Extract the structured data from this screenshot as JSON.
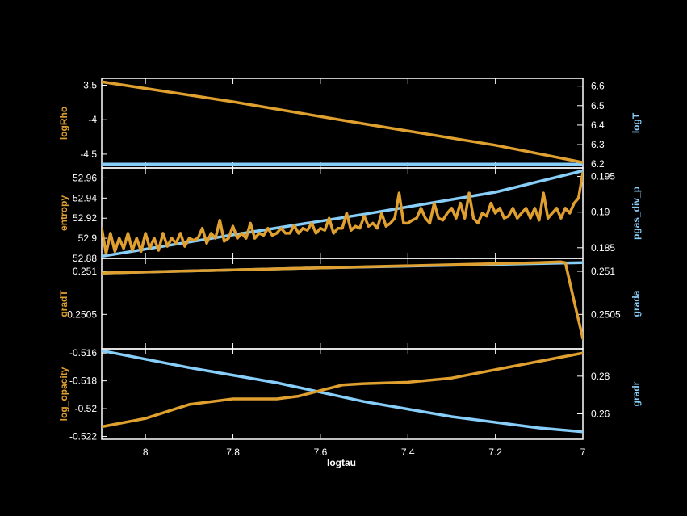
{
  "colors": {
    "background": "#000000",
    "frame": "#ffffff",
    "left_series": "#e0a030",
    "right_series": "#87cefa"
  },
  "chart_data": {
    "type": "line",
    "xlabel": "logtau",
    "x_reversed": true,
    "xlim": [
      8.1,
      7.0
    ],
    "xticks": [
      "8",
      "7.8",
      "7.6",
      "7.4",
      "7.2",
      "7"
    ],
    "xtick_values": [
      8.0,
      7.8,
      7.6,
      7.4,
      7.2,
      7.0
    ],
    "panels": [
      {
        "left": {
          "label": "logRho",
          "ylim": [
            -4.7,
            -3.4
          ],
          "ticks": [
            "-3.5",
            "-4",
            "-4.5"
          ],
          "tick_values": [
            -3.5,
            -4.0,
            -4.5
          ],
          "x": [
            8.1,
            7.8,
            7.5,
            7.2,
            7.0
          ],
          "y": [
            -3.45,
            -3.74,
            -4.06,
            -4.37,
            -4.62
          ]
        },
        "right": {
          "label": "logT",
          "ylim": [
            6.18,
            6.64
          ],
          "ticks": [
            "6.6",
            "6.5",
            "6.4",
            "6.3",
            "6.2"
          ],
          "tick_values": [
            6.6,
            6.5,
            6.4,
            6.3,
            6.2
          ],
          "x": [
            8.1,
            7.0
          ],
          "y": [
            6.2,
            6.2
          ]
        }
      },
      {
        "left": {
          "label": "entropy",
          "ylim": [
            52.88,
            52.97
          ],
          "ticks": [
            "52.96",
            "52.94",
            "52.92",
            "52.9",
            "52.88"
          ],
          "tick_values": [
            52.96,
            52.94,
            52.92,
            52.9,
            52.88
          ],
          "x": [
            8.1,
            8.09,
            8.08,
            8.07,
            8.06,
            8.05,
            8.04,
            8.03,
            8.02,
            8.01,
            8.0,
            7.99,
            7.98,
            7.97,
            7.96,
            7.95,
            7.94,
            7.93,
            7.92,
            7.91,
            7.9,
            7.89,
            7.88,
            7.87,
            7.86,
            7.85,
            7.84,
            7.83,
            7.82,
            7.81,
            7.8,
            7.79,
            7.78,
            7.77,
            7.76,
            7.75,
            7.74,
            7.73,
            7.72,
            7.71,
            7.7,
            7.69,
            7.68,
            7.67,
            7.66,
            7.65,
            7.64,
            7.63,
            7.62,
            7.61,
            7.6,
            7.59,
            7.58,
            7.57,
            7.56,
            7.55,
            7.54,
            7.53,
            7.52,
            7.51,
            7.5,
            7.49,
            7.48,
            7.47,
            7.46,
            7.45,
            7.44,
            7.43,
            7.42,
            7.41,
            7.4,
            7.39,
            7.38,
            7.37,
            7.36,
            7.35,
            7.34,
            7.33,
            7.32,
            7.31,
            7.3,
            7.29,
            7.28,
            7.27,
            7.26,
            7.25,
            7.24,
            7.23,
            7.22,
            7.21,
            7.2,
            7.19,
            7.18,
            7.17,
            7.16,
            7.15,
            7.14,
            7.13,
            7.12,
            7.11,
            7.1,
            7.09,
            7.08,
            7.07,
            7.06,
            7.05,
            7.04,
            7.03,
            7.02,
            7.01,
            7.0
          ],
          "y": [
            52.91,
            52.885,
            52.905,
            52.887,
            52.9,
            52.89,
            52.905,
            52.888,
            52.9,
            52.887,
            52.905,
            52.89,
            52.9,
            52.888,
            52.905,
            52.892,
            52.9,
            52.895,
            52.905,
            52.892,
            52.9,
            52.898,
            52.9,
            52.91,
            52.895,
            52.905,
            52.9,
            52.918,
            52.897,
            52.9,
            52.912,
            52.9,
            52.905,
            52.9,
            52.915,
            52.9,
            52.905,
            52.903,
            52.91,
            52.903,
            52.905,
            52.91,
            52.905,
            52.905,
            52.913,
            52.905,
            52.91,
            52.908,
            52.915,
            52.905,
            52.91,
            52.908,
            52.92,
            52.905,
            52.91,
            52.91,
            52.925,
            52.908,
            52.912,
            52.91,
            52.922,
            52.912,
            52.915,
            52.91,
            52.925,
            52.912,
            52.915,
            52.92,
            52.945,
            52.915,
            52.915,
            52.918,
            52.92,
            52.93,
            52.92,
            52.915,
            52.935,
            52.92,
            52.918,
            52.925,
            52.93,
            52.92,
            52.935,
            52.92,
            52.945,
            52.92,
            52.915,
            52.925,
            52.922,
            52.935,
            52.925,
            52.93,
            52.92,
            52.922,
            52.93,
            52.92,
            52.925,
            52.93,
            52.92,
            52.93,
            52.918,
            52.945,
            52.92,
            52.925,
            52.93,
            52.92,
            52.93,
            52.925,
            52.935,
            52.94,
            52.965
          ]
        },
        "right": {
          "label": "pgas_div_p",
          "ylim": [
            0.1835,
            0.1962
          ],
          "ticks": [
            "0.195",
            "0.19",
            "0.185"
          ],
          "tick_values": [
            0.195,
            0.19,
            0.185
          ],
          "x": [
            8.1,
            7.8,
            7.5,
            7.2,
            7.0
          ],
          "y": [
            0.1838,
            0.1868,
            0.1897,
            0.1928,
            0.1958
          ]
        }
      },
      {
        "left": {
          "label": "gradT",
          "ylim": [
            0.2501,
            0.25115
          ],
          "ticks": [
            "0.251",
            "0.2505"
          ],
          "tick_values": [
            0.251,
            0.2505
          ],
          "x": [
            8.1,
            7.6,
            7.1,
            7.05,
            7.04,
            7.02,
            7.0
          ],
          "y": [
            0.25098,
            0.25104,
            0.2511,
            0.25111,
            0.2511,
            0.25065,
            0.25022
          ]
        },
        "right": {
          "label": "grada",
          "ylim": [
            0.2501,
            0.25115
          ],
          "ticks": [
            "0.251",
            "0.2505"
          ],
          "tick_values": [
            0.251,
            0.2505
          ],
          "x": [
            8.1,
            7.6,
            7.0
          ],
          "y": [
            0.25098,
            0.25104,
            0.2511
          ]
        }
      },
      {
        "left": {
          "label": "log_opacity",
          "ylim": [
            -0.5222,
            -0.5157
          ],
          "ticks": [
            "-0.516",
            "-0.518",
            "-0.52",
            "-0.522"
          ],
          "tick_values": [
            -0.516,
            -0.518,
            -0.52,
            -0.522
          ],
          "x": [
            8.1,
            8.0,
            7.9,
            7.8,
            7.75,
            7.7,
            7.65,
            7.6,
            7.55,
            7.5,
            7.4,
            7.3,
            7.2,
            7.1,
            7.0
          ],
          "y": [
            -0.5213,
            -0.5207,
            -0.5197,
            -0.5193,
            -0.5193,
            -0.5193,
            -0.5191,
            -0.5187,
            -0.5183,
            -0.5182,
            -0.5181,
            -0.5178,
            -0.5172,
            -0.5166,
            -0.516
          ]
        },
        "right": {
          "label": "gradr",
          "ylim": [
            0.2465,
            0.2945
          ],
          "ticks": [
            "0.28",
            "0.26"
          ],
          "tick_values": [
            0.28,
            0.26
          ],
          "x": [
            8.1,
            7.9,
            7.7,
            7.5,
            7.3,
            7.1,
            7.0
          ],
          "y": [
            0.2935,
            0.2845,
            0.2765,
            0.2665,
            0.2585,
            0.2525,
            0.2505
          ]
        }
      }
    ]
  }
}
